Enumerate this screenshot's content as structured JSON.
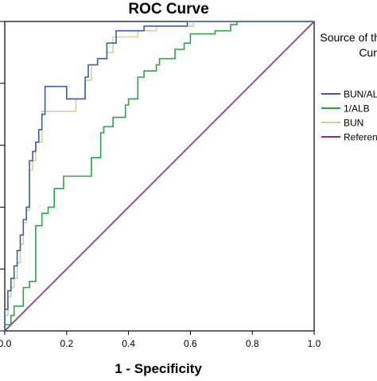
{
  "chart_data": {
    "type": "line",
    "title": "ROC Curve",
    "xlabel": "1 - Specificity",
    "ylabel": "",
    "xlim": [
      0,
      1
    ],
    "ylim": [
      0,
      1
    ],
    "x_ticks": [
      0.0,
      0.2,
      0.4,
      0.6,
      0.8,
      1.0
    ],
    "x_tick_labels": [
      "0.0",
      "0.2",
      "0.4",
      "0.6",
      "0.8",
      "1.0"
    ],
    "y_ticks": [
      0.0,
      0.2,
      0.4,
      0.6,
      0.8,
      1.0
    ],
    "grid": false,
    "legend": {
      "position": "right",
      "title_lines": [
        "Source of the",
        "Curve"
      ],
      "entries": [
        "BUN/ALB",
        "1/ALB",
        "BUN",
        "Reference Line"
      ]
    },
    "series": [
      {
        "name": "BUN/ALB",
        "color": "#3a5fa8",
        "points": [
          [
            0,
            0
          ],
          [
            0,
            0.07
          ],
          [
            0.01,
            0.07
          ],
          [
            0.01,
            0.13
          ],
          [
            0.02,
            0.13
          ],
          [
            0.02,
            0.17
          ],
          [
            0.03,
            0.17
          ],
          [
            0.03,
            0.21
          ],
          [
            0.04,
            0.21
          ],
          [
            0.04,
            0.26
          ],
          [
            0.05,
            0.26
          ],
          [
            0.05,
            0.31
          ],
          [
            0.06,
            0.31
          ],
          [
            0.06,
            0.36
          ],
          [
            0.07,
            0.36
          ],
          [
            0.07,
            0.4
          ],
          [
            0.08,
            0.4
          ],
          [
            0.08,
            0.55
          ],
          [
            0.09,
            0.55
          ],
          [
            0.09,
            0.58
          ],
          [
            0.1,
            0.58
          ],
          [
            0.1,
            0.61
          ],
          [
            0.11,
            0.61
          ],
          [
            0.11,
            0.65
          ],
          [
            0.12,
            0.65
          ],
          [
            0.12,
            0.7
          ],
          [
            0.13,
            0.7
          ],
          [
            0.13,
            0.79
          ],
          [
            0.2,
            0.79
          ],
          [
            0.2,
            0.75
          ],
          [
            0.26,
            0.75
          ],
          [
            0.26,
            0.82
          ],
          [
            0.27,
            0.82
          ],
          [
            0.27,
            0.86
          ],
          [
            0.3,
            0.86
          ],
          [
            0.3,
            0.88
          ],
          [
            0.33,
            0.88
          ],
          [
            0.33,
            0.93
          ],
          [
            0.36,
            0.93
          ],
          [
            0.36,
            0.97
          ],
          [
            0.45,
            0.97
          ],
          [
            0.45,
            0.985
          ],
          [
            0.59,
            0.985
          ],
          [
            0.59,
            1.0
          ],
          [
            1.0,
            1.0
          ]
        ]
      },
      {
        "name": "1/ALB",
        "color": "#27a844",
        "points": [
          [
            0,
            0
          ],
          [
            0,
            0.02
          ],
          [
            0.02,
            0.02
          ],
          [
            0.02,
            0.05
          ],
          [
            0.03,
            0.05
          ],
          [
            0.03,
            0.08
          ],
          [
            0.06,
            0.08
          ],
          [
            0.06,
            0.14
          ],
          [
            0.08,
            0.14
          ],
          [
            0.08,
            0.16
          ],
          [
            0.1,
            0.16
          ],
          [
            0.1,
            0.34
          ],
          [
            0.12,
            0.34
          ],
          [
            0.12,
            0.38
          ],
          [
            0.14,
            0.38
          ],
          [
            0.14,
            0.4
          ],
          [
            0.16,
            0.4
          ],
          [
            0.16,
            0.46
          ],
          [
            0.19,
            0.46
          ],
          [
            0.19,
            0.5
          ],
          [
            0.28,
            0.5
          ],
          [
            0.28,
            0.56
          ],
          [
            0.31,
            0.56
          ],
          [
            0.31,
            0.64
          ],
          [
            0.32,
            0.64
          ],
          [
            0.32,
            0.66
          ],
          [
            0.35,
            0.66
          ],
          [
            0.35,
            0.69
          ],
          [
            0.39,
            0.69
          ],
          [
            0.39,
            0.73
          ],
          [
            0.4,
            0.73
          ],
          [
            0.4,
            0.75
          ],
          [
            0.43,
            0.75
          ],
          [
            0.43,
            0.82
          ],
          [
            0.45,
            0.82
          ],
          [
            0.45,
            0.84
          ],
          [
            0.49,
            0.84
          ],
          [
            0.49,
            0.86
          ],
          [
            0.5,
            0.86
          ],
          [
            0.5,
            0.88
          ],
          [
            0.55,
            0.88
          ],
          [
            0.55,
            0.91
          ],
          [
            0.58,
            0.91
          ],
          [
            0.58,
            0.93
          ],
          [
            0.6,
            0.93
          ],
          [
            0.6,
            0.96
          ],
          [
            0.68,
            0.96
          ],
          [
            0.68,
            0.97
          ],
          [
            0.73,
            0.97
          ],
          [
            0.73,
            0.99
          ],
          [
            0.75,
            0.99
          ],
          [
            0.75,
            1.0
          ],
          [
            1.0,
            1.0
          ]
        ]
      },
      {
        "name": "BUN",
        "color": "#d8d09a",
        "points": [
          [
            0,
            0
          ],
          [
            0,
            0.05
          ],
          [
            0.01,
            0.05
          ],
          [
            0.01,
            0.11
          ],
          [
            0.02,
            0.11
          ],
          [
            0.02,
            0.14
          ],
          [
            0.03,
            0.14
          ],
          [
            0.03,
            0.17
          ],
          [
            0.04,
            0.17
          ],
          [
            0.04,
            0.22
          ],
          [
            0.05,
            0.22
          ],
          [
            0.05,
            0.28
          ],
          [
            0.06,
            0.28
          ],
          [
            0.06,
            0.35
          ],
          [
            0.07,
            0.35
          ],
          [
            0.07,
            0.39
          ],
          [
            0.08,
            0.39
          ],
          [
            0.08,
            0.52
          ],
          [
            0.09,
            0.52
          ],
          [
            0.09,
            0.55
          ],
          [
            0.1,
            0.55
          ],
          [
            0.1,
            0.61
          ],
          [
            0.12,
            0.61
          ],
          [
            0.12,
            0.71
          ],
          [
            0.23,
            0.71
          ],
          [
            0.23,
            0.75
          ],
          [
            0.26,
            0.75
          ],
          [
            0.26,
            0.81
          ],
          [
            0.28,
            0.81
          ],
          [
            0.28,
            0.86
          ],
          [
            0.3,
            0.86
          ],
          [
            0.3,
            0.88
          ],
          [
            0.33,
            0.88
          ],
          [
            0.33,
            0.9
          ],
          [
            0.35,
            0.9
          ],
          [
            0.35,
            0.95
          ],
          [
            0.43,
            0.95
          ],
          [
            0.43,
            0.97
          ],
          [
            0.49,
            0.97
          ],
          [
            0.49,
            0.985
          ],
          [
            0.61,
            0.985
          ],
          [
            0.61,
            1.0
          ],
          [
            1.0,
            1.0
          ]
        ]
      },
      {
        "name": "Reference Line",
        "color": "#8b2d82",
        "points": [
          [
            0,
            0
          ],
          [
            1,
            1
          ]
        ]
      }
    ]
  }
}
